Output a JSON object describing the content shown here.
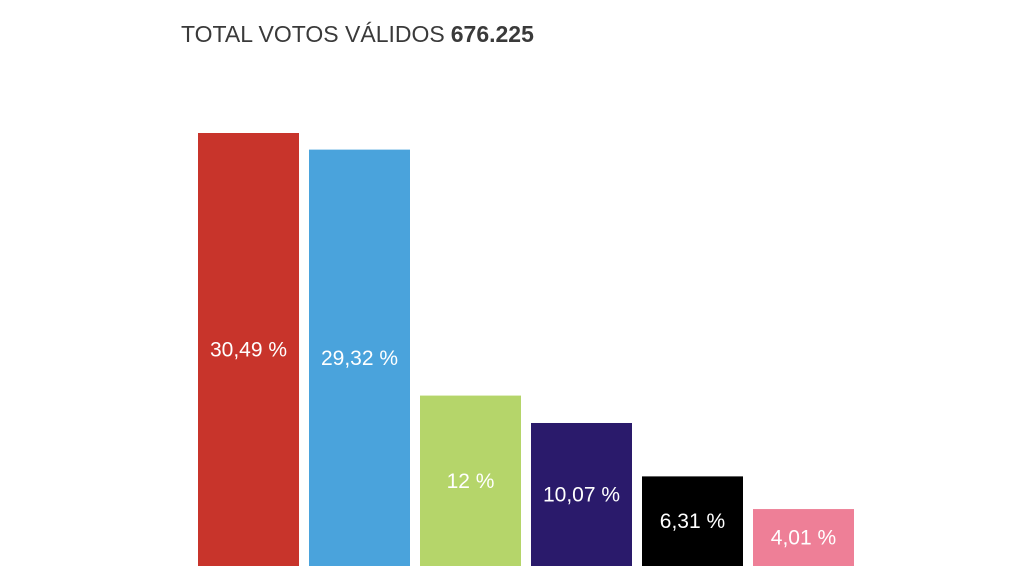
{
  "title": {
    "label": "TOTAL VOTOS VÁLIDOS",
    "value": "676.225"
  },
  "chart_data": {
    "type": "bar",
    "title": "TOTAL VOTOS VÁLIDOS 676.225",
    "xlabel": "",
    "ylabel": "",
    "grid": false,
    "ylim": [
      0,
      30.49
    ],
    "values": [
      30.49,
      29.32,
      12,
      10.07,
      6.31,
      4.01
    ],
    "labels": [
      "30,49 %",
      "29,32 %",
      "12 %",
      "10,07 %",
      "6,31 %",
      "4,01 %"
    ],
    "colors": [
      "#c8342b",
      "#4aa3dc",
      "#b5d56a",
      "#2a1a6b",
      "#000000",
      "#ee7f97"
    ]
  }
}
